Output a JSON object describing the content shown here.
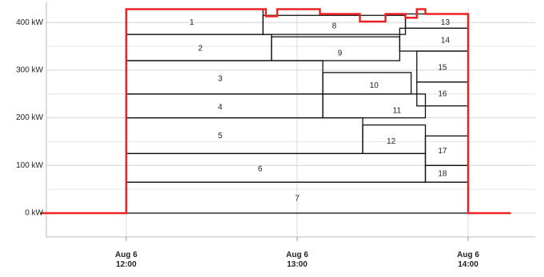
{
  "chart_data": {
    "type": "area",
    "title": "",
    "xlabel": "",
    "ylabel": "",
    "y_unit": "kW",
    "ylim": [
      -50,
      430
    ],
    "xlim": [
      "11:30",
      "14:15"
    ],
    "grid": true,
    "y_ticks": [
      {
        "value": 0,
        "label": "0 kW"
      },
      {
        "value": 100,
        "label": "100 kW"
      },
      {
        "value": 200,
        "label": "200 kW"
      },
      {
        "value": 300,
        "label": "300 kW"
      },
      {
        "value": 400,
        "label": "400 kW"
      }
    ],
    "x_ticks": [
      {
        "time": "12:00",
        "label_line1": "Aug 6",
        "label_line2": "12:00"
      },
      {
        "time": "13:00",
        "label_line1": "Aug 6",
        "label_line2": "13:00"
      },
      {
        "time": "14:00",
        "label_line1": "Aug 6",
        "label_line2": "14:00"
      }
    ],
    "total_load_color": "#ee2222",
    "block_edge_color": "#111111",
    "total_load_kw": [
      {
        "time": "11:30",
        "value": 0
      },
      {
        "time": "12:00",
        "value": 0
      },
      {
        "time": "12:00",
        "value": 428
      },
      {
        "time": "12:49",
        "value": 428
      },
      {
        "time": "12:49",
        "value": 413
      },
      {
        "time": "12:53",
        "value": 413
      },
      {
        "time": "12:53",
        "value": 428
      },
      {
        "time": "13:08",
        "value": 428
      },
      {
        "time": "13:08",
        "value": 418
      },
      {
        "time": "13:22",
        "value": 418
      },
      {
        "time": "13:22",
        "value": 402
      },
      {
        "time": "13:31",
        "value": 402
      },
      {
        "time": "13:31",
        "value": 418
      },
      {
        "time": "13:38",
        "value": 418
      },
      {
        "time": "13:38",
        "value": 410
      },
      {
        "time": "13:42",
        "value": 410
      },
      {
        "time": "13:42",
        "value": 428
      },
      {
        "time": "13:45",
        "value": 428
      },
      {
        "time": "13:45",
        "value": 418
      },
      {
        "time": "14:00",
        "value": 418
      },
      {
        "time": "14:00",
        "value": 0
      },
      {
        "time": "14:15",
        "value": 0
      }
    ],
    "blocks": [
      {
        "label": "7",
        "x": [
          "12:00",
          "14:00"
        ],
        "y": [
          0,
          65
        ]
      },
      {
        "label": "6",
        "x": [
          "12:00",
          "13:45"
        ],
        "y": [
          65,
          125
        ]
      },
      {
        "label": "5",
        "x": [
          "12:00",
          "13:23"
        ],
        "y": [
          125,
          200
        ]
      },
      {
        "label": "4",
        "x": [
          "12:00",
          "13:09"
        ],
        "y": [
          200,
          250
        ]
      },
      {
        "label": "3",
        "x": [
          "12:00",
          "13:09"
        ],
        "y": [
          250,
          320
        ]
      },
      {
        "label": "2",
        "x": [
          "12:00",
          "12:51"
        ],
        "y": [
          320,
          375
        ]
      },
      {
        "label": "1",
        "x": [
          "12:00",
          "12:48"
        ],
        "y": [
          375,
          428
        ]
      },
      {
        "label": "8",
        "x": [
          "12:48",
          "13:38"
        ],
        "y": [
          375,
          415
        ]
      },
      {
        "label": "9",
        "x": [
          "12:51",
          "13:36"
        ],
        "y": [
          320,
          370
        ]
      },
      {
        "label": "10",
        "x": [
          "13:09",
          "13:40"
        ],
        "y": [
          250,
          295
        ]
      },
      {
        "label": "11",
        "x": [
          "13:09",
          "13:45"
        ],
        "y": [
          200,
          250
        ]
      },
      {
        "label": "12",
        "x": [
          "13:23",
          "13:45"
        ],
        "y": [
          125,
          185
        ]
      },
      {
        "label": "13",
        "x": [
          "13:38",
          "14:00"
        ],
        "y": [
          388,
          418
        ]
      },
      {
        "label": "14",
        "x": [
          "13:36",
          "14:00"
        ],
        "y": [
          340,
          388
        ]
      },
      {
        "label": "15",
        "x": [
          "13:42",
          "14:00"
        ],
        "y": [
          275,
          340
        ]
      },
      {
        "label": "16",
        "x": [
          "13:42",
          "14:00"
        ],
        "y": [
          225,
          275
        ]
      },
      {
        "label": "17",
        "x": [
          "13:45",
          "14:00"
        ],
        "y": [
          100,
          162
        ]
      },
      {
        "label": "18",
        "x": [
          "13:45",
          "14:00"
        ],
        "y": [
          65,
          100
        ]
      }
    ],
    "block_labels": [
      {
        "label": "1",
        "time": "12:23",
        "value": 400
      },
      {
        "label": "2",
        "time": "12:26",
        "value": 345
      },
      {
        "label": "3",
        "time": "12:33",
        "value": 282
      },
      {
        "label": "4",
        "time": "12:33",
        "value": 222
      },
      {
        "label": "5",
        "time": "12:33",
        "value": 162
      },
      {
        "label": "6",
        "time": "12:47",
        "value": 92
      },
      {
        "label": "7",
        "time": "13:00",
        "value": 30
      },
      {
        "label": "8",
        "time": "13:13",
        "value": 392
      },
      {
        "label": "9",
        "time": "13:15",
        "value": 335
      },
      {
        "label": "10",
        "time": "13:27",
        "value": 267
      },
      {
        "label": "11",
        "time": "13:35",
        "value": 215
      },
      {
        "label": "12",
        "time": "13:33",
        "value": 150
      },
      {
        "label": "13",
        "time": "13:52",
        "value": 400
      },
      {
        "label": "14",
        "time": "13:52",
        "value": 362
      },
      {
        "label": "15",
        "time": "13:51",
        "value": 305
      },
      {
        "label": "16",
        "time": "13:51",
        "value": 250
      },
      {
        "label": "17",
        "time": "13:51",
        "value": 130
      },
      {
        "label": "18",
        "time": "13:51",
        "value": 82
      }
    ]
  }
}
